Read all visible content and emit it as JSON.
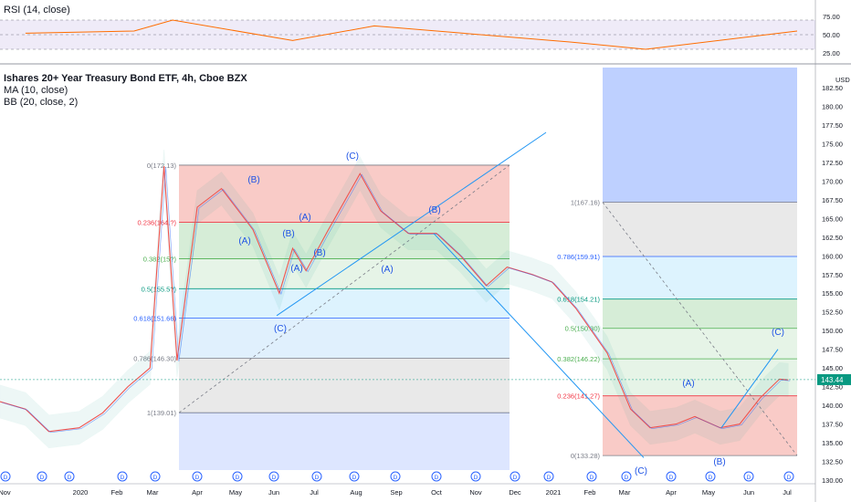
{
  "rsi": {
    "label": "RSI (14, close)",
    "ticks": [
      "75.00",
      "50.00",
      "25.00"
    ],
    "tick_values": [
      75,
      50,
      25
    ]
  },
  "main": {
    "title": "Ishares 20+ Year Treasury Bond ETF, 4h, Cboe BZX",
    "ma_label": "MA (10, close)",
    "bb_label": "BB (20, close, 2)",
    "currency": "USD",
    "price_ticks": [
      "182.50",
      "180.00",
      "177.50",
      "175.00",
      "172.50",
      "170.00",
      "167.50",
      "165.00",
      "162.50",
      "160.00",
      "157.50",
      "155.00",
      "152.50",
      "150.00",
      "147.50",
      "145.00",
      "142.50",
      "140.00",
      "137.50",
      "135.00",
      "132.50",
      "130.00"
    ],
    "last_price_label": "143.44",
    "last_price": 143.44
  },
  "x_axis": [
    "Nov",
    "2020",
    "Feb",
    "Mar",
    "Apr",
    "May",
    "Jun",
    "Jul",
    "Aug",
    "Sep",
    "Oct",
    "Nov",
    "Dec",
    "2021",
    "Feb",
    "Mar",
    "Apr",
    "May",
    "Jun",
    "Jul"
  ],
  "fib_1": {
    "labels": [
      "0(172.13)",
      "0.236(164.?)",
      "0.382(15?)",
      "0.5(155.5?)",
      "0.618(151.66)",
      "0.786(146.30)",
      "1(139.01)"
    ],
    "levels": [
      172.13,
      164.5,
      159.6,
      155.6,
      151.66,
      146.3,
      139.01
    ]
  },
  "fib_2": {
    "labels": [
      "1(167.16)",
      "0.786(159.91)",
      "0.618(154.21)",
      "0.5(150.30)",
      "0.382(146.22)",
      "0.236(141.27)",
      "0(133.28)"
    ],
    "levels": [
      167.16,
      159.91,
      154.21,
      150.3,
      146.22,
      141.27,
      133.28
    ]
  },
  "wave_labels": [
    "(B)",
    "(C)",
    "(A)",
    "(A)",
    "(B)",
    "(B)",
    "(C)",
    "(A)",
    "(B)",
    "(A)",
    "(C)",
    "(A)",
    "(C)",
    "(B)"
  ],
  "dividend_marker": "D",
  "chart_data": {
    "type": "line",
    "title": "Ishares 20+ Year Treasury Bond ETF, 4h, Cboe BZX",
    "ylabel": "USD",
    "ylim": [
      130,
      185
    ],
    "series": [
      {
        "name": "close",
        "x": [
          "2019-10-25",
          "2019-11-15",
          "2019-12-05",
          "2019-12-31",
          "2020-01-20",
          "2020-02-10",
          "2020-02-28",
          "2020-03-09",
          "2020-03-18",
          "2020-04-01",
          "2020-04-20",
          "2020-05-15",
          "2020-06-05",
          "2020-06-15",
          "2020-06-25",
          "2020-07-10",
          "2020-08-04",
          "2020-08-20",
          "2020-09-10",
          "2020-10-01",
          "2020-10-20",
          "2020-11-09",
          "2020-11-25",
          "2020-12-15",
          "2020-12-31",
          "2021-01-20",
          "2021-02-15",
          "2021-03-05",
          "2021-03-18",
          "2021-04-05",
          "2021-04-20",
          "2021-05-10",
          "2021-05-25",
          "2021-06-10",
          "2021-06-25",
          "2021-07-02"
        ],
        "values": [
          140.5,
          139.5,
          136.5,
          137.0,
          139.0,
          142.5,
          145.0,
          172.0,
          146.0,
          166.5,
          169.0,
          163.5,
          155.0,
          161.0,
          158.0,
          163.0,
          171.0,
          166.0,
          163.0,
          163.0,
          160.0,
          156.0,
          158.5,
          157.5,
          156.5,
          153.0,
          147.0,
          139.5,
          137.0,
          137.5,
          138.5,
          137.0,
          137.5,
          141.0,
          143.5,
          143.4
        ]
      },
      {
        "name": "RSI",
        "x": [
          "2019-11",
          "2020-02",
          "2020-03",
          "2020-06",
          "2020-08",
          "2021-01",
          "2021-03",
          "2021-07"
        ],
        "values": [
          52,
          55,
          70,
          42,
          62,
          40,
          30,
          55
        ]
      }
    ]
  }
}
